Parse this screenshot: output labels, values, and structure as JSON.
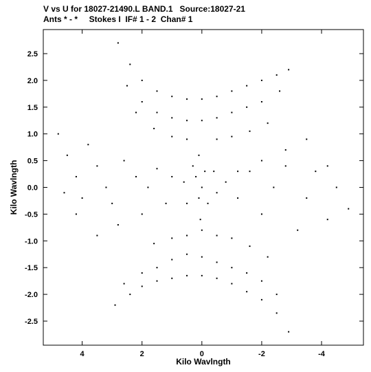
{
  "header": {
    "title_line1": "V vs U for 18027-21490.L BAND.1   Source:18027-21",
    "title_line2": "Ants * - *     Stokes I  IF# 1 - 2  Chan# 1"
  },
  "chart_data": {
    "type": "scatter",
    "title": "V vs U for 18027-21490.L BAND.1   Source:18027-21",
    "subtitle": "Ants * - *     Stokes I  IF# 1 - 2  Chan# 1",
    "xlabel": "Kilo Wavlngth",
    "ylabel": "Kilo Wavlngth",
    "xlim": [
      5.3,
      -5.4
    ],
    "ylim": [
      -2.95,
      2.95
    ],
    "x_reversed": true,
    "xticks": [
      4,
      2,
      0,
      -2,
      -4
    ],
    "xtick_labels": [
      "4",
      "2",
      "0",
      "-2",
      "-4"
    ],
    "yticks": [
      -2.5,
      -2.0,
      -1.5,
      -1.0,
      -0.5,
      0.0,
      0.5,
      1.0,
      1.5,
      2.0,
      2.5
    ],
    "ytick_labels": [
      "-2.5",
      "-2.0",
      "-1.5",
      "-1.0",
      "-0.5",
      "0.0",
      "0.5",
      "1.0",
      "1.5",
      "2.0",
      "2.5"
    ],
    "grid": false,
    "marker_color": "#000000",
    "series": [
      {
        "values": [
          [
            2.8,
            2.7
          ],
          [
            2.4,
            2.3
          ],
          [
            2.0,
            2.0
          ],
          [
            1.5,
            1.8
          ],
          [
            1.0,
            1.7
          ],
          [
            0.5,
            1.65
          ],
          [
            0.0,
            1.65
          ],
          [
            -0.5,
            1.7
          ],
          [
            -1.0,
            1.8
          ],
          [
            -1.5,
            1.9
          ],
          [
            -2.0,
            2.0
          ],
          [
            -2.5,
            2.1
          ],
          [
            -2.9,
            2.2
          ],
          [
            2.5,
            1.9
          ],
          [
            2.0,
            1.6
          ],
          [
            1.5,
            1.4
          ],
          [
            1.0,
            1.3
          ],
          [
            0.5,
            1.25
          ],
          [
            0.0,
            1.25
          ],
          [
            -0.5,
            1.3
          ],
          [
            -1.0,
            1.4
          ],
          [
            -1.5,
            1.5
          ],
          [
            -2.0,
            1.6
          ],
          [
            -2.6,
            1.8
          ],
          [
            2.2,
            1.4
          ],
          [
            1.6,
            1.1
          ],
          [
            1.0,
            0.95
          ],
          [
            0.5,
            0.9
          ],
          [
            -0.5,
            0.9
          ],
          [
            -1.0,
            0.95
          ],
          [
            -1.6,
            1.05
          ],
          [
            -2.2,
            1.2
          ],
          [
            4.8,
            1.0
          ],
          [
            4.5,
            0.6
          ],
          [
            4.2,
            0.2
          ],
          [
            4.0,
            -0.2
          ],
          [
            4.2,
            -0.5
          ],
          [
            3.8,
            0.8
          ],
          [
            3.5,
            0.4
          ],
          [
            3.2,
            0.0
          ],
          [
            3.0,
            -0.3
          ],
          [
            2.6,
            0.5
          ],
          [
            2.2,
            0.2
          ],
          [
            1.8,
            0.0
          ],
          [
            1.5,
            0.35
          ],
          [
            1.0,
            0.2
          ],
          [
            0.6,
            0.1
          ],
          [
            -4.9,
            -0.4
          ],
          [
            -4.5,
            0.0
          ],
          [
            -4.2,
            -0.6
          ],
          [
            -3.8,
            0.3
          ],
          [
            -3.5,
            -0.2
          ],
          [
            -3.2,
            -0.8
          ],
          [
            -2.8,
            0.4
          ],
          [
            -2.4,
            0.0
          ],
          [
            -2.0,
            -0.5
          ],
          [
            -1.6,
            0.3
          ],
          [
            -1.2,
            -0.2
          ],
          [
            -0.8,
            0.1
          ],
          [
            -0.5,
            -0.1
          ],
          [
            0.3,
            0.4
          ],
          [
            0.2,
            0.2
          ],
          [
            0.1,
            -0.2
          ],
          [
            0.0,
            0.0
          ],
          [
            -0.1,
            0.3
          ],
          [
            -0.2,
            -0.3
          ],
          [
            0.05,
            -0.6
          ],
          [
            0.0,
            -0.8
          ],
          [
            0.1,
            0.6
          ],
          [
            0.5,
            -0.3
          ],
          [
            -0.4,
            0.3
          ],
          [
            2.6,
            -1.8
          ],
          [
            2.0,
            -1.6
          ],
          [
            1.5,
            -1.5
          ],
          [
            1.0,
            -1.35
          ],
          [
            0.5,
            -1.25
          ],
          [
            0.0,
            -1.3
          ],
          [
            -0.5,
            -1.4
          ],
          [
            -1.0,
            -1.5
          ],
          [
            -1.5,
            -1.6
          ],
          [
            -2.0,
            -1.75
          ],
          [
            -2.5,
            -2.0
          ],
          [
            2.9,
            -2.2
          ],
          [
            2.4,
            -2.0
          ],
          [
            2.0,
            -1.85
          ],
          [
            1.5,
            -1.75
          ],
          [
            1.0,
            -1.7
          ],
          [
            0.5,
            -1.65
          ],
          [
            0.0,
            -1.65
          ],
          [
            -0.5,
            -1.7
          ],
          [
            -1.0,
            -1.8
          ],
          [
            -1.5,
            -1.95
          ],
          [
            -2.0,
            -2.1
          ],
          [
            -2.5,
            -2.35
          ],
          [
            -2.9,
            -2.7
          ],
          [
            1.6,
            -1.05
          ],
          [
            1.0,
            -0.95
          ],
          [
            0.5,
            -0.9
          ],
          [
            -0.5,
            -0.9
          ],
          [
            -1.0,
            -0.95
          ],
          [
            -1.6,
            -1.1
          ],
          [
            -2.2,
            -1.3
          ],
          [
            3.5,
            -0.9
          ],
          [
            2.8,
            -0.7
          ],
          [
            2.0,
            -0.5
          ],
          [
            1.2,
            -0.3
          ],
          [
            -1.2,
            0.3
          ],
          [
            -2.0,
            0.5
          ],
          [
            -2.8,
            0.7
          ],
          [
            -3.5,
            0.9
          ],
          [
            -4.2,
            0.4
          ],
          [
            4.6,
            -0.1
          ]
        ]
      }
    ]
  }
}
